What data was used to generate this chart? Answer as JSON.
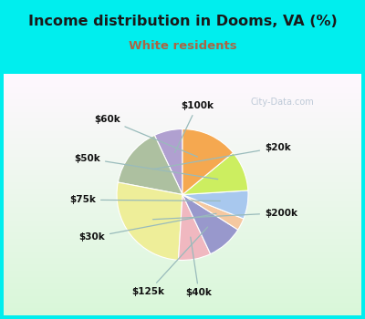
{
  "title": "Income distribution in Dooms, VA (%)",
  "subtitle": "White residents",
  "title_color": "#1a1a1a",
  "subtitle_color": "#aa6644",
  "background_outer": "#00EEEE",
  "background_inner_top": "#e8f8f4",
  "background_inner_bottom": "#d8eed8",
  "labels": [
    "$100k",
    "$20k",
    "$200k",
    "$40k",
    "$125k",
    "$30k",
    "$75k",
    "$50k",
    "$60k"
  ],
  "sizes": [
    7,
    15,
    27,
    8,
    9,
    3,
    7,
    10,
    14
  ],
  "colors": [
    "#b0a0d0",
    "#adc0a0",
    "#eeee99",
    "#f0b8c0",
    "#9898cc",
    "#f5c8a0",
    "#a8c8ee",
    "#ccee60",
    "#f5a850"
  ],
  "startangle": 90,
  "watermark": "City-Data.com"
}
